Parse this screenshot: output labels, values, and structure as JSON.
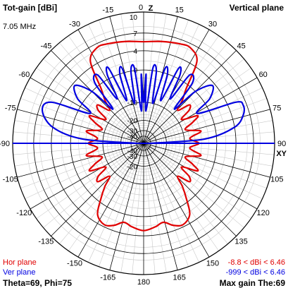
{
  "header": {
    "left_title": "Tot-gain [dBi]",
    "right_title": "Vertical plane",
    "frequency": "7.05 MHz"
  },
  "footer": {
    "hor_label": "Hor plane",
    "ver_label": "Ver plane",
    "hor_range": "-8.8 < dBi < 6.46",
    "ver_range": "-999 < dBi < 6.46",
    "angles": "Theta=69, Phi=75",
    "max_gain": "Max gain The:69"
  },
  "colors": {
    "hor": "#e00000",
    "ver": "#0000e0",
    "grid": "#000000"
  },
  "chart_data": {
    "type": "polar",
    "plane": "Vertical plane",
    "radial_unit": "dBi",
    "radial_ticks": [
      10,
      7,
      4,
      0,
      -10,
      -20,
      -30,
      -40
    ],
    "angle_ticks": [
      {
        "label": "0",
        "deg": 0
      },
      {
        "label": "15",
        "deg": 15
      },
      {
        "label": "30",
        "deg": 30
      },
      {
        "label": "45",
        "deg": 45
      },
      {
        "label": "60",
        "deg": 60
      },
      {
        "label": "75",
        "deg": 75
      },
      {
        "label": "90",
        "deg": 90
      },
      {
        "label": "105",
        "deg": 105
      },
      {
        "label": "120",
        "deg": 120
      },
      {
        "label": "135",
        "deg": 135
      },
      {
        "label": "150",
        "deg": 150
      },
      {
        "label": "165",
        "deg": 165
      },
      {
        "label": "180",
        "deg": 180
      },
      {
        "label": "-165",
        "deg": -165
      },
      {
        "label": "-150",
        "deg": -150
      },
      {
        "label": "-135",
        "deg": -135
      },
      {
        "label": "-120",
        "deg": -120
      },
      {
        "label": "-105",
        "deg": -105
      },
      {
        "label": "-90",
        "deg": -90
      },
      {
        "label": "-75",
        "deg": -75
      },
      {
        "label": "-60",
        "deg": -60
      },
      {
        "label": "-45",
        "deg": -45
      },
      {
        "label": "-30",
        "deg": -30
      },
      {
        "label": "-15",
        "deg": -15
      }
    ],
    "axis_labels": {
      "top": "Z",
      "right": "XY"
    },
    "series": [
      {
        "name": "Hor plane",
        "color": "#e00000",
        "closed": true,
        "points": [
          {
            "deg": 0,
            "dbi": 5.6
          },
          {
            "deg": 10,
            "dbi": 5.9
          },
          {
            "deg": 20,
            "dbi": 6.3
          },
          {
            "deg": 26,
            "dbi": 6.4
          },
          {
            "deg": 33,
            "dbi": 5.0
          },
          {
            "deg": 38,
            "dbi": -1.0
          },
          {
            "deg": 42,
            "dbi": -4.0
          },
          {
            "deg": 46,
            "dbi": -7.5
          },
          {
            "deg": 50,
            "dbi": -3.5
          },
          {
            "deg": 54,
            "dbi": -4.5
          },
          {
            "deg": 58,
            "dbi": -8.5
          },
          {
            "deg": 63,
            "dbi": -3.2
          },
          {
            "deg": 67,
            "dbi": -5.5
          },
          {
            "deg": 72,
            "dbi": -8.8
          },
          {
            "deg": 78,
            "dbi": -3.8
          },
          {
            "deg": 84,
            "dbi": -7.8
          },
          {
            "deg": 90,
            "dbi": -4.8
          },
          {
            "deg": 96,
            "dbi": -7.8
          },
          {
            "deg": 102,
            "dbi": -3.8
          },
          {
            "deg": 108,
            "dbi": -8.8
          },
          {
            "deg": 113,
            "dbi": -5.5
          },
          {
            "deg": 117,
            "dbi": -3.2
          },
          {
            "deg": 122,
            "dbi": -8.5
          },
          {
            "deg": 126,
            "dbi": -4.5
          },
          {
            "deg": 130,
            "dbi": -3.5
          },
          {
            "deg": 134,
            "dbi": -7.5
          },
          {
            "deg": 138,
            "dbi": -4.0
          },
          {
            "deg": 142,
            "dbi": -1.0
          },
          {
            "deg": 147,
            "dbi": 2.5
          },
          {
            "deg": 154,
            "dbi": 3.6
          },
          {
            "deg": 160,
            "dbi": 3.0
          },
          {
            "deg": 166,
            "dbi": 1.8
          },
          {
            "deg": 172,
            "dbi": 2.4
          },
          {
            "deg": 180,
            "dbi": 3.0
          },
          {
            "deg": -172,
            "dbi": 2.4
          },
          {
            "deg": -166,
            "dbi": 1.8
          },
          {
            "deg": -160,
            "dbi": 3.0
          },
          {
            "deg": -154,
            "dbi": 3.6
          },
          {
            "deg": -147,
            "dbi": 2.5
          },
          {
            "deg": -142,
            "dbi": -1.0
          },
          {
            "deg": -138,
            "dbi": -4.0
          },
          {
            "deg": -134,
            "dbi": -7.5
          },
          {
            "deg": -130,
            "dbi": -3.5
          },
          {
            "deg": -126,
            "dbi": -4.5
          },
          {
            "deg": -122,
            "dbi": -8.5
          },
          {
            "deg": -117,
            "dbi": -3.2
          },
          {
            "deg": -113,
            "dbi": -5.5
          },
          {
            "deg": -108,
            "dbi": -8.8
          },
          {
            "deg": -102,
            "dbi": -3.8
          },
          {
            "deg": -96,
            "dbi": -7.8
          },
          {
            "deg": -90,
            "dbi": -4.8
          },
          {
            "deg": -84,
            "dbi": -7.8
          },
          {
            "deg": -78,
            "dbi": -3.8
          },
          {
            "deg": -72,
            "dbi": -8.8
          },
          {
            "deg": -67,
            "dbi": -5.5
          },
          {
            "deg": -63,
            "dbi": -3.2
          },
          {
            "deg": -58,
            "dbi": -8.5
          },
          {
            "deg": -54,
            "dbi": -4.5
          },
          {
            "deg": -50,
            "dbi": -3.5
          },
          {
            "deg": -46,
            "dbi": -7.5
          },
          {
            "deg": -42,
            "dbi": -4.0
          },
          {
            "deg": -38,
            "dbi": -1.0
          },
          {
            "deg": -33,
            "dbi": 5.0
          },
          {
            "deg": -26,
            "dbi": 6.4
          },
          {
            "deg": -20,
            "dbi": 6.3
          },
          {
            "deg": -10,
            "dbi": 5.9
          }
        ]
      },
      {
        "name": "Ver plane",
        "color": "#0000e0",
        "closed": false,
        "points": [
          {
            "deg": -90,
            "dbi": -40
          },
          {
            "deg": -86,
            "dbi": -3.0
          },
          {
            "deg": -80,
            "dbi": 4.0
          },
          {
            "deg": -72,
            "dbi": 6.46
          },
          {
            "deg": -66,
            "dbi": 5.5
          },
          {
            "deg": -61,
            "dbi": -3.0
          },
          {
            "deg": -56,
            "dbi": 1.5
          },
          {
            "deg": -50,
            "dbi": 3.5
          },
          {
            "deg": -45,
            "dbi": 0.0
          },
          {
            "deg": -42,
            "dbi": -8.0
          },
          {
            "deg": -39,
            "dbi": 1.0
          },
          {
            "deg": -34,
            "dbi": 2.0
          },
          {
            "deg": -31,
            "dbi": -6.0
          },
          {
            "deg": -28,
            "dbi": 1.0
          },
          {
            "deg": -25,
            "dbi": 2.0
          },
          {
            "deg": -22,
            "dbi": -8.0
          },
          {
            "deg": -19,
            "dbi": 0.0
          },
          {
            "deg": -16,
            "dbi": 1.0
          },
          {
            "deg": -13,
            "dbi": -10.0
          },
          {
            "deg": -10,
            "dbi": 0.0
          },
          {
            "deg": -7,
            "dbi": 0.5
          },
          {
            "deg": -4,
            "dbi": -14.0
          },
          {
            "deg": -2,
            "dbi": -1.0
          },
          {
            "deg": 0,
            "dbi": -10.0
          },
          {
            "deg": 2,
            "dbi": -1.0
          },
          {
            "deg": 4,
            "dbi": -14.0
          },
          {
            "deg": 7,
            "dbi": 0.5
          },
          {
            "deg": 10,
            "dbi": 0.0
          },
          {
            "deg": 13,
            "dbi": -10.0
          },
          {
            "deg": 16,
            "dbi": 1.0
          },
          {
            "deg": 19,
            "dbi": 0.0
          },
          {
            "deg": 22,
            "dbi": -8.0
          },
          {
            "deg": 25,
            "dbi": 2.0
          },
          {
            "deg": 28,
            "dbi": 1.0
          },
          {
            "deg": 31,
            "dbi": -6.0
          },
          {
            "deg": 34,
            "dbi": 2.0
          },
          {
            "deg": 39,
            "dbi": 1.0
          },
          {
            "deg": 42,
            "dbi": -8.0
          },
          {
            "deg": 45,
            "dbi": 0.0
          },
          {
            "deg": 50,
            "dbi": 3.5
          },
          {
            "deg": 56,
            "dbi": 1.5
          },
          {
            "deg": 61,
            "dbi": -3.0
          },
          {
            "deg": 66,
            "dbi": 5.5
          },
          {
            "deg": 69,
            "dbi": 6.46
          },
          {
            "deg": 74,
            "dbi": 6.0
          },
          {
            "deg": 80,
            "dbi": 4.0
          },
          {
            "deg": 86,
            "dbi": -3.0
          },
          {
            "deg": 90,
            "dbi": -40
          }
        ]
      }
    ]
  }
}
